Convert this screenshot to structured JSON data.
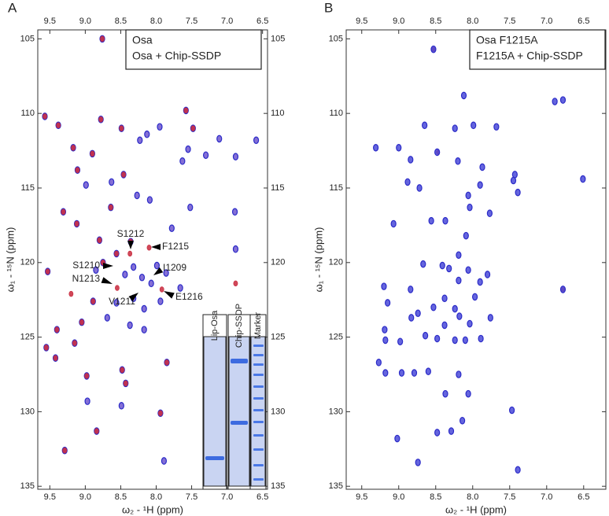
{
  "chart_data": [
    {
      "type": "scatter",
      "panel": "A",
      "x_label": "ω₂ - ¹H (ppm)",
      "y_label": "ω₁ - ¹⁵N (ppm)",
      "xlim": [
        9.67,
        6.43
      ],
      "ylim": [
        104.4,
        135.2
      ],
      "xticks": [
        9.5,
        {
          "value": 9,
          "label": "9.0"
        },
        8.5,
        {
          "value": 8,
          "label": "8.0"
        },
        7.5,
        {
          "value": 7,
          "label": "7.0"
        },
        6.5
      ],
      "yticks": [
        105,
        110,
        115,
        120,
        125,
        130,
        135
      ],
      "legend": "top-right",
      "series": [
        {
          "name": "Osa + Chip-SSDP",
          "color": "#2b2bc8",
          "x": [
            8.76,
            9.57,
            8.78,
            7.95,
            8.49,
            7.48,
            7.58,
            9.38,
            8.13,
            8.23,
            7.11,
            9.17,
            6.59,
            7.55,
            8.9,
            7.3,
            6.88,
            7.63,
            9.11,
            8.46,
            8.63,
            8.27,
            8.09,
            8.99,
            9.31,
            6.89,
            7.52,
            8.64,
            9.12,
            8.8,
            7.78,
            8.36,
            8.56,
            8.75,
            8.85,
            9.53,
            7.99,
            8.32,
            7.86,
            8.44,
            8.2,
            8.07,
            7.66,
            8.32,
            8.89,
            8.56,
            8.17,
            7.94,
            8.69,
            8.37,
            9.05,
            9.4,
            8.17,
            9.55,
            9.15,
            7.85,
            9.42,
            8.48,
            8.98,
            8.43,
            7.94,
            8.49,
            8.97,
            8.84,
            9.29,
            7.89,
            6.88
          ],
          "values": [
            105.0,
            110.2,
            110.4,
            110.9,
            111.0,
            111.0,
            109.8,
            110.8,
            111.4,
            111.8,
            111.7,
            112.3,
            111.8,
            112.4,
            112.7,
            112.8,
            112.9,
            113.2,
            113.8,
            114.1,
            114.6,
            115.5,
            115.8,
            114.8,
            116.6,
            116.6,
            116.3,
            116.3,
            117.4,
            118.5,
            117.7,
            118.6,
            119.4,
            120.0,
            120.5,
            120.6,
            120.2,
            120.3,
            120.7,
            120.8,
            121.0,
            121.4,
            121.7,
            122.4,
            122.6,
            122.7,
            123.1,
            122.6,
            123.7,
            124.2,
            124.0,
            124.5,
            124.5,
            125.7,
            125.4,
            126.7,
            126.4,
            127.2,
            127.6,
            128.1,
            130.1,
            129.6,
            129.3,
            131.3,
            132.6,
            133.3,
            119.1
          ]
        },
        {
          "name": "Osa",
          "color": "#c8283c",
          "x": [
            8.76,
            9.57,
            8.78,
            8.49,
            7.48,
            7.58,
            9.38,
            9.17,
            8.9,
            9.11,
            8.46,
            9.31,
            8.64,
            9.12,
            8.8,
            8.36,
            8.37,
            8.1,
            8.56,
            8.75,
            9.53,
            8.55,
            7.92,
            9.2,
            8.89,
            9.05,
            9.4,
            9.55,
            9.15,
            7.85,
            9.42,
            8.48,
            8.98,
            8.43,
            7.94,
            8.84,
            9.29,
            6.88
          ],
          "values": [
            105.0,
            110.2,
            110.4,
            111.0,
            111.0,
            109.8,
            110.8,
            112.3,
            112.7,
            113.8,
            114.1,
            116.6,
            116.3,
            117.4,
            118.5,
            118.6,
            119.4,
            119.0,
            119.4,
            120.0,
            120.6,
            121.7,
            121.8,
            122.1,
            122.6,
            124.0,
            124.5,
            125.7,
            125.4,
            126.7,
            126.4,
            127.2,
            127.6,
            128.1,
            130.1,
            131.3,
            132.6,
            121.4
          ]
        }
      ],
      "annotations": [
        {
          "text": "S1212",
          "color": "#000000"
        },
        {
          "text": "F1215",
          "color": "#c8283c"
        },
        {
          "text": "S1210",
          "color": "#000000"
        },
        {
          "text": "I1209",
          "color": "#000000"
        },
        {
          "text": "N1213",
          "color": "#c8283c"
        },
        {
          "text": "V1211",
          "color": "#000000"
        },
        {
          "text": "E1216",
          "color": "#000000"
        }
      ],
      "inset_labels": [
        "Lip-Osa",
        "Chip-SSDP",
        "Marker"
      ]
    },
    {
      "type": "scatter",
      "panel": "B",
      "x_label": "ω₂ - ¹H (ppm)",
      "y_label": "ω₁ - ¹⁵N (ppm)",
      "xlim": [
        9.71,
        6.2
      ],
      "ylim": [
        104.4,
        135.2
      ],
      "xticks": [
        9.5,
        {
          "value": 9,
          "label": "9.0"
        },
        8.5,
        {
          "value": 8,
          "label": "8.0"
        },
        7.5,
        {
          "value": 7,
          "label": "7.0"
        },
        6.5
      ],
      "yticks": [
        105,
        110,
        115,
        120,
        125,
        130,
        135
      ],
      "legend": "top-right",
      "series": [
        {
          "name": "F1215A + Chip-SSDP",
          "color": "#2b2bc8",
          "x": [
            8.53,
            8.12,
            6.89,
            6.78,
            7.68,
            8.65,
            7.99,
            8.24,
            9.0,
            9.31,
            8.48,
            8.84,
            8.2,
            7.87,
            7.43,
            6.51,
            7.45,
            8.88,
            7.9,
            8.72,
            8.06,
            7.39,
            9.07,
            8.56,
            8.04,
            8.37,
            7.77,
            8.09,
            8.19,
            8.67,
            8.41,
            8.32,
            8.06,
            7.8,
            7.9,
            6.78,
            8.19,
            8.84,
            9.2,
            8.38,
            7.97,
            8.53,
            8.24,
            9.15,
            8.74,
            8.18,
            8.04,
            7.76,
            8.83,
            8.38,
            9.19,
            8.64,
            8.48,
            8.1,
            7.89,
            8.24,
            8.98,
            9.18,
            9.27,
            8.96,
            8.79,
            9.18,
            8.6,
            8.19,
            8.37,
            8.06,
            8.14,
            7.47,
            8.29,
            8.48,
            8.74,
            9.02,
            7.39
          ],
          "values": [
            105.7,
            108.8,
            109.2,
            109.1,
            110.9,
            110.8,
            110.8,
            111.0,
            112.3,
            112.3,
            112.6,
            113.1,
            113.2,
            113.6,
            114.1,
            114.4,
            114.5,
            114.6,
            114.8,
            115.0,
            115.5,
            115.3,
            117.4,
            117.2,
            116.3,
            117.2,
            116.7,
            118.2,
            119.5,
            120.1,
            120.2,
            120.4,
            120.5,
            120.8,
            121.3,
            121.8,
            121.2,
            121.8,
            121.6,
            122.4,
            122.3,
            123.0,
            123.1,
            122.7,
            123.4,
            123.6,
            124.1,
            123.7,
            123.7,
            124.2,
            124.5,
            124.9,
            125.1,
            125.2,
            125.1,
            125.2,
            125.3,
            125.2,
            126.7,
            127.4,
            127.4,
            127.4,
            127.3,
            127.5,
            128.8,
            128.8,
            130.6,
            129.9,
            131.3,
            131.4,
            133.4,
            131.8,
            133.9
          ]
        },
        {
          "name": "Osa F1215A",
          "color": "#c8283c",
          "x": [
            8.47,
            6.78,
            8.53
          ],
          "values": [
            112.6,
            121.8,
            105.7
          ]
        }
      ]
    }
  ]
}
